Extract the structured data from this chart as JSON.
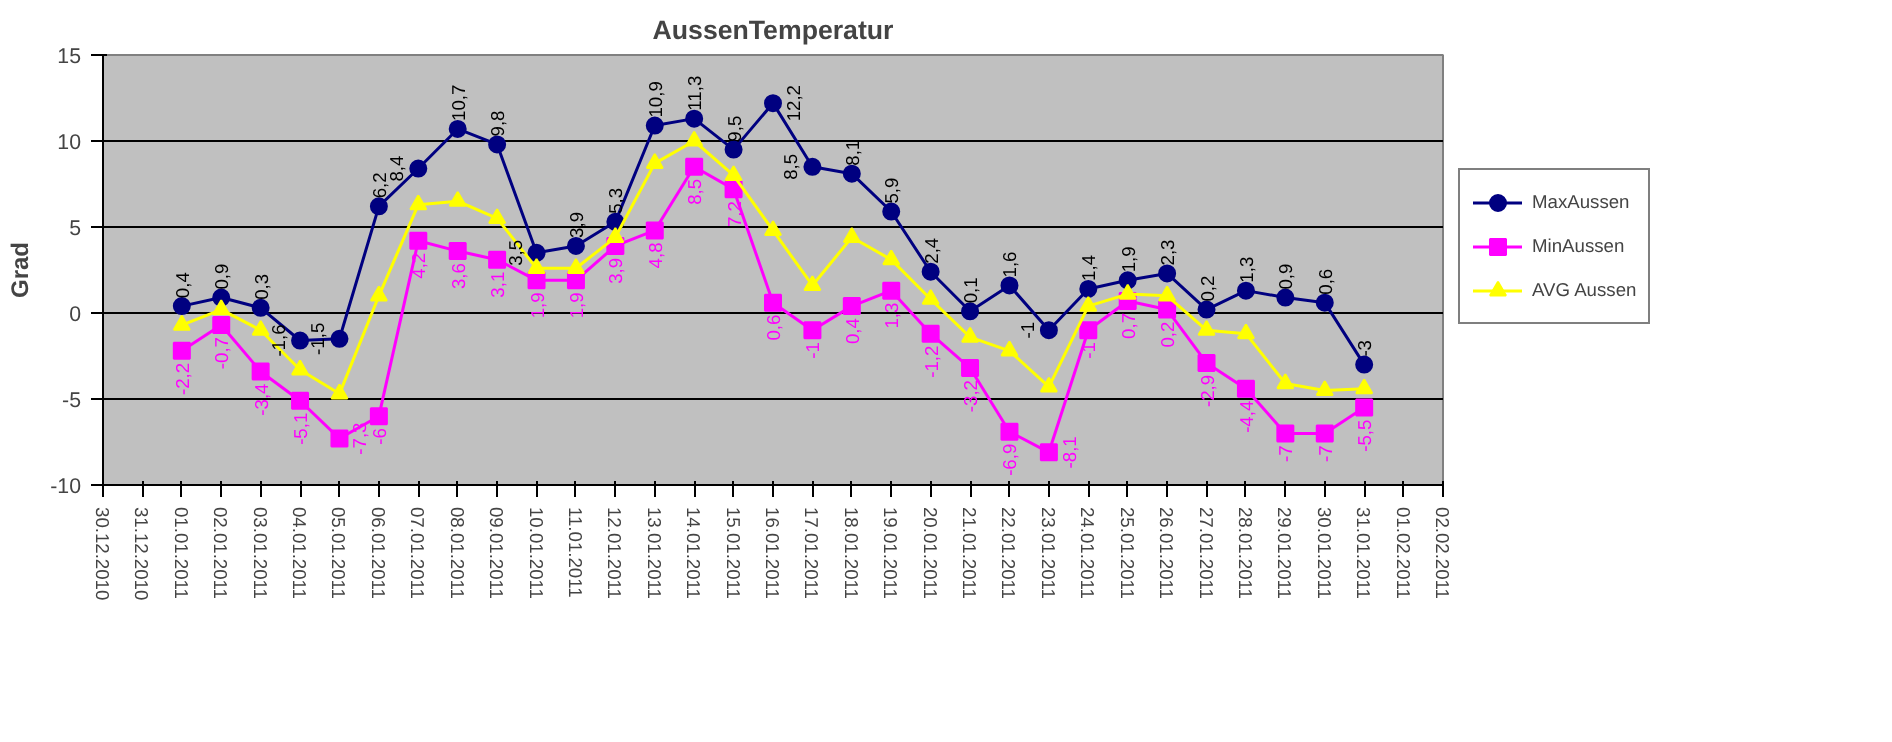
{
  "chart_data": {
    "type": "line",
    "title": "AussenTemperatur",
    "ylabel": "Grad",
    "x": [
      "2011-01-01",
      "2011-01-02",
      "2011-01-03",
      "2011-01-04",
      "2011-01-05",
      "2011-01-06",
      "2011-01-07",
      "2011-01-08",
      "2011-01-09",
      "2011-01-10",
      "2011-01-11",
      "2011-01-12",
      "2011-01-13",
      "2011-01-14",
      "2011-01-15",
      "2011-01-16",
      "2011-01-17",
      "2011-01-18",
      "2011-01-19",
      "2011-01-20",
      "2011-01-21",
      "2011-01-22",
      "2011-01-23",
      "2011-01-24",
      "2011-01-25",
      "2011-01-26",
      "2011-01-27",
      "2011-01-28",
      "2011-01-29",
      "2011-01-30",
      "2011-01-31"
    ],
    "series": [
      {
        "name": "MaxAussen",
        "color": "#000080",
        "marker": "circle",
        "values": [
          0.4,
          0.9,
          0.3,
          -1.6,
          -1.5,
          6.2,
          8.4,
          10.7,
          9.8,
          3.5,
          3.9,
          5.3,
          10.9,
          11.3,
          9.5,
          12.2,
          8.5,
          8.1,
          5.9,
          2.4,
          0.1,
          1.6,
          -1,
          1.4,
          1.9,
          2.3,
          0.2,
          1.3,
          0.9,
          0.6,
          -3
        ],
        "value_labels": [
          "0,4",
          "0,9",
          "0,3",
          "-1,6",
          "-1,5",
          "6,2",
          "8,4",
          "10,7",
          "9,8",
          "3,5",
          "3,9",
          "5,3",
          "10,9",
          "11,3",
          "9,5",
          "12,2",
          "8,5",
          "8,1",
          "5,9",
          "2,4",
          "0,1",
          "1,6",
          "-1",
          "1,4",
          "1,9",
          "2,3",
          "0,2",
          "1,3",
          "0,9",
          "0,6",
          "-3"
        ]
      },
      {
        "name": "MinAussen",
        "color": "#ff00ff",
        "marker": "square",
        "values": [
          -2.2,
          -0.7,
          -3.4,
          -5.1,
          -7.3,
          -6,
          4.2,
          3.6,
          3.1,
          1.9,
          1.9,
          3.9,
          4.8,
          8.5,
          7.2,
          0.6,
          -1,
          0.4,
          1.3,
          -1.2,
          -3.2,
          -6.9,
          -8.1,
          -1,
          0.7,
          0.2,
          -2.9,
          -4.4,
          -7,
          -7,
          -5.5
        ],
        "value_labels": [
          "-2,2",
          "-0,7",
          "-3,4",
          "-5,1",
          "-7,3",
          "-6",
          "4,2",
          "3,6",
          "3,1",
          "1,9",
          "1,9",
          "3,9",
          "4,8",
          "8,5",
          "7,2",
          "0,6",
          "-1",
          "0,4",
          "1,3",
          "-1,2",
          "-3,2",
          "-6,9",
          "-8,1",
          "-1",
          "0,7",
          "0,2",
          "-2,9",
          "-4,4",
          "-7",
          "-7",
          "-5,5"
        ]
      },
      {
        "name": "AVG Aussen",
        "color": "#ffff00",
        "marker": "triangle",
        "values": [
          -0.7,
          0.2,
          -1.0,
          -3.3,
          -4.7,
          1.0,
          6.3,
          6.5,
          5.5,
          2.6,
          2.6,
          4.4,
          8.7,
          10.0,
          8.0,
          4.8,
          1.6,
          4.4,
          3.1,
          0.8,
          -1.4,
          -2.2,
          -4.3,
          0.4,
          1.1,
          1.0,
          -1.0,
          -1.2,
          -4.1,
          -4.5,
          -4.4
        ]
      }
    ],
    "xlim": [
      "2010-12-30",
      "2011-02-02"
    ],
    "xticks": [
      {
        "value": "2010-12-30",
        "label": "30.12.2010"
      },
      {
        "value": "2010-12-31",
        "label": "31.12.2010"
      },
      {
        "value": "2011-01-01",
        "label": "01.01.2011"
      },
      {
        "value": "2011-01-02",
        "label": "02.01.2011"
      },
      {
        "value": "2011-01-03",
        "label": "03.01.2011"
      },
      {
        "value": "2011-01-04",
        "label": "04.01.2011"
      },
      {
        "value": "2011-01-05",
        "label": "05.01.2011"
      },
      {
        "value": "2011-01-06",
        "label": "06.01.2011"
      },
      {
        "value": "2011-01-07",
        "label": "07.01.2011"
      },
      {
        "value": "2011-01-08",
        "label": "08.01.2011"
      },
      {
        "value": "2011-01-09",
        "label": "09.01.2011"
      },
      {
        "value": "2011-01-10",
        "label": "10.01.2011"
      },
      {
        "value": "2011-01-11",
        "label": "11.01.2011"
      },
      {
        "value": "2011-01-12",
        "label": "12.01.2011"
      },
      {
        "value": "2011-01-13",
        "label": "13.01.2011"
      },
      {
        "value": "2011-01-14",
        "label": "14.01.2011"
      },
      {
        "value": "2011-01-15",
        "label": "15.01.2011"
      },
      {
        "value": "2011-01-16",
        "label": "16.01.2011"
      },
      {
        "value": "2011-01-17",
        "label": "17.01.2011"
      },
      {
        "value": "2011-01-18",
        "label": "18.01.2011"
      },
      {
        "value": "2011-01-19",
        "label": "19.01.2011"
      },
      {
        "value": "2011-01-20",
        "label": "20.01.2011"
      },
      {
        "value": "2011-01-21",
        "label": "21.01.2011"
      },
      {
        "value": "2011-01-22",
        "label": "22.01.2011"
      },
      {
        "value": "2011-01-23",
        "label": "23.01.2011"
      },
      {
        "value": "2011-01-24",
        "label": "24.01.2011"
      },
      {
        "value": "2011-01-25",
        "label": "25.01.2011"
      },
      {
        "value": "2011-01-26",
        "label": "26.01.2011"
      },
      {
        "value": "2011-01-27",
        "label": "27.01.2011"
      },
      {
        "value": "2011-01-28",
        "label": "28.01.2011"
      },
      {
        "value": "2011-01-29",
        "label": "29.01.2011"
      },
      {
        "value": "2011-01-30",
        "label": "30.01.2011"
      },
      {
        "value": "2011-01-31",
        "label": "31.01.2011"
      },
      {
        "value": "2011-02-01",
        "label": "01.02.2011"
      },
      {
        "value": "2011-02-02",
        "label": "02.02.2011"
      }
    ],
    "ylim": [
      -10,
      15
    ],
    "yticks": [
      -10,
      -5,
      0,
      5,
      10,
      15
    ],
    "grid": "y",
    "legend": "right",
    "line_style": "solid"
  }
}
